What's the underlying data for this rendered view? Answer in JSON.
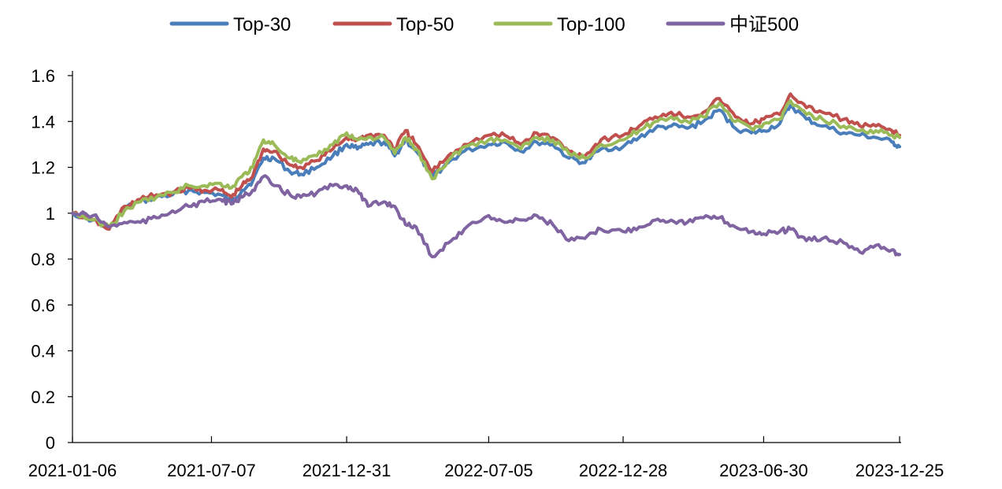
{
  "chart_data": {
    "type": "line",
    "title": "",
    "xlabel": "",
    "ylabel": "",
    "x_tick_labels": [
      "2021-01-06",
      "2021-07-07",
      "2021-12-31",
      "2022-07-05",
      "2022-12-28",
      "2023-06-30",
      "2023-12-25"
    ],
    "y_tick_labels": [
      "0",
      "0.2",
      "0.4",
      "0.6",
      "0.8",
      "1",
      "1.2",
      "1.4",
      "1.6"
    ],
    "ylim": [
      0,
      1.6
    ],
    "grid": false,
    "legend_position": "top",
    "series": [
      {
        "name": "Top-30",
        "color": "#4a7ebb",
        "points": [
          [
            "2021-01-06",
            1.0
          ],
          [
            "2021-02-02",
            0.97
          ],
          [
            "2021-02-23",
            0.93
          ],
          [
            "2021-03-15",
            1.02
          ],
          [
            "2021-04-05",
            1.05
          ],
          [
            "2021-04-26",
            1.07
          ],
          [
            "2021-05-17",
            1.08
          ],
          [
            "2021-06-07",
            1.1
          ],
          [
            "2021-06-28",
            1.09
          ],
          [
            "2021-07-19",
            1.08
          ],
          [
            "2021-08-02",
            1.05
          ],
          [
            "2021-08-16",
            1.1
          ],
          [
            "2021-08-30",
            1.14
          ],
          [
            "2021-09-13",
            1.24
          ],
          [
            "2021-09-27",
            1.24
          ],
          [
            "2021-10-18",
            1.18
          ],
          [
            "2021-11-01",
            1.17
          ],
          [
            "2021-11-22",
            1.2
          ],
          [
            "2021-12-13",
            1.25
          ],
          [
            "2021-12-31",
            1.3
          ],
          [
            "2022-01-14",
            1.28
          ],
          [
            "2022-01-28",
            1.3
          ],
          [
            "2022-02-18",
            1.31
          ],
          [
            "2022-03-04",
            1.25
          ],
          [
            "2022-03-18",
            1.32
          ],
          [
            "2022-04-01",
            1.27
          ],
          [
            "2022-04-22",
            1.16
          ],
          [
            "2022-05-13",
            1.22
          ],
          [
            "2022-06-03",
            1.27
          ],
          [
            "2022-07-05",
            1.3
          ],
          [
            "2022-07-26",
            1.31
          ],
          [
            "2022-08-16",
            1.27
          ],
          [
            "2022-09-06",
            1.31
          ],
          [
            "2022-09-27",
            1.3
          ],
          [
            "2022-10-18",
            1.24
          ],
          [
            "2022-11-08",
            1.22
          ],
          [
            "2022-11-29",
            1.28
          ],
          [
            "2022-12-28",
            1.29
          ],
          [
            "2023-01-18",
            1.33
          ],
          [
            "2023-02-08",
            1.37
          ],
          [
            "2023-03-01",
            1.38
          ],
          [
            "2023-03-22",
            1.37
          ],
          [
            "2023-04-12",
            1.4
          ],
          [
            "2023-05-03",
            1.45
          ],
          [
            "2023-05-24",
            1.37
          ],
          [
            "2023-06-14",
            1.35
          ],
          [
            "2023-06-30",
            1.36
          ],
          [
            "2023-07-21",
            1.39
          ],
          [
            "2023-08-04",
            1.47
          ],
          [
            "2023-08-25",
            1.41
          ],
          [
            "2023-09-15",
            1.38
          ],
          [
            "2023-10-13",
            1.35
          ],
          [
            "2023-11-03",
            1.34
          ],
          [
            "2023-11-24",
            1.33
          ],
          [
            "2023-12-15",
            1.31
          ],
          [
            "2023-12-25",
            1.29
          ]
        ]
      },
      {
        "name": "Top-50",
        "color": "#c0504d",
        "points": [
          [
            "2021-01-06",
            1.0
          ],
          [
            "2021-02-02",
            0.97
          ],
          [
            "2021-02-23",
            0.93
          ],
          [
            "2021-03-15",
            1.03
          ],
          [
            "2021-04-05",
            1.06
          ],
          [
            "2021-04-26",
            1.08
          ],
          [
            "2021-05-17",
            1.09
          ],
          [
            "2021-06-07",
            1.11
          ],
          [
            "2021-06-28",
            1.1
          ],
          [
            "2021-07-19",
            1.1
          ],
          [
            "2021-08-02",
            1.07
          ],
          [
            "2021-08-16",
            1.12
          ],
          [
            "2021-08-30",
            1.16
          ],
          [
            "2021-09-13",
            1.28
          ],
          [
            "2021-09-27",
            1.27
          ],
          [
            "2021-10-18",
            1.21
          ],
          [
            "2021-11-01",
            1.2
          ],
          [
            "2021-11-22",
            1.23
          ],
          [
            "2021-12-13",
            1.28
          ],
          [
            "2021-12-31",
            1.33
          ],
          [
            "2022-01-14",
            1.32
          ],
          [
            "2022-01-28",
            1.34
          ],
          [
            "2022-02-18",
            1.34
          ],
          [
            "2022-03-04",
            1.28
          ],
          [
            "2022-03-18",
            1.36
          ],
          [
            "2022-04-01",
            1.3
          ],
          [
            "2022-04-22",
            1.18
          ],
          [
            "2022-05-13",
            1.25
          ],
          [
            "2022-06-03",
            1.3
          ],
          [
            "2022-07-05",
            1.34
          ],
          [
            "2022-07-26",
            1.34
          ],
          [
            "2022-08-16",
            1.3
          ],
          [
            "2022-09-06",
            1.35
          ],
          [
            "2022-09-27",
            1.33
          ],
          [
            "2022-10-18",
            1.27
          ],
          [
            "2022-11-08",
            1.25
          ],
          [
            "2022-11-29",
            1.32
          ],
          [
            "2022-12-28",
            1.34
          ],
          [
            "2023-01-18",
            1.38
          ],
          [
            "2023-02-08",
            1.42
          ],
          [
            "2023-03-01",
            1.44
          ],
          [
            "2023-03-22",
            1.42
          ],
          [
            "2023-04-12",
            1.44
          ],
          [
            "2023-05-03",
            1.5
          ],
          [
            "2023-05-24",
            1.42
          ],
          [
            "2023-06-14",
            1.39
          ],
          [
            "2023-06-30",
            1.41
          ],
          [
            "2023-07-21",
            1.43
          ],
          [
            "2023-08-04",
            1.52
          ],
          [
            "2023-08-25",
            1.46
          ],
          [
            "2023-09-15",
            1.44
          ],
          [
            "2023-10-13",
            1.41
          ],
          [
            "2023-11-03",
            1.38
          ],
          [
            "2023-11-24",
            1.38
          ],
          [
            "2023-12-15",
            1.36
          ],
          [
            "2023-12-25",
            1.34
          ]
        ]
      },
      {
        "name": "Top-100",
        "color": "#9bbb59",
        "points": [
          [
            "2021-01-06",
            1.0
          ],
          [
            "2021-02-02",
            0.97
          ],
          [
            "2021-02-23",
            0.94
          ],
          [
            "2021-03-15",
            1.01
          ],
          [
            "2021-04-05",
            1.05
          ],
          [
            "2021-04-26",
            1.07
          ],
          [
            "2021-05-17",
            1.09
          ],
          [
            "2021-06-07",
            1.12
          ],
          [
            "2021-06-28",
            1.12
          ],
          [
            "2021-07-19",
            1.13
          ],
          [
            "2021-08-02",
            1.11
          ],
          [
            "2021-08-16",
            1.16
          ],
          [
            "2021-08-30",
            1.2
          ],
          [
            "2021-09-13",
            1.32
          ],
          [
            "2021-09-27",
            1.3
          ],
          [
            "2021-10-18",
            1.24
          ],
          [
            "2021-11-01",
            1.22
          ],
          [
            "2021-11-22",
            1.25
          ],
          [
            "2021-12-13",
            1.3
          ],
          [
            "2021-12-31",
            1.35
          ],
          [
            "2022-01-14",
            1.32
          ],
          [
            "2022-01-28",
            1.33
          ],
          [
            "2022-02-18",
            1.33
          ],
          [
            "2022-03-04",
            1.26
          ],
          [
            "2022-03-18",
            1.33
          ],
          [
            "2022-04-01",
            1.28
          ],
          [
            "2022-04-22",
            1.15
          ],
          [
            "2022-05-13",
            1.23
          ],
          [
            "2022-06-03",
            1.29
          ],
          [
            "2022-07-05",
            1.32
          ],
          [
            "2022-07-26",
            1.32
          ],
          [
            "2022-08-16",
            1.28
          ],
          [
            "2022-09-06",
            1.33
          ],
          [
            "2022-09-27",
            1.32
          ],
          [
            "2022-10-18",
            1.26
          ],
          [
            "2022-11-08",
            1.24
          ],
          [
            "2022-11-29",
            1.3
          ],
          [
            "2022-12-28",
            1.32
          ],
          [
            "2023-01-18",
            1.36
          ],
          [
            "2023-02-08",
            1.4
          ],
          [
            "2023-03-01",
            1.42
          ],
          [
            "2023-03-22",
            1.4
          ],
          [
            "2023-04-12",
            1.42
          ],
          [
            "2023-05-03",
            1.48
          ],
          [
            "2023-05-24",
            1.4
          ],
          [
            "2023-06-14",
            1.37
          ],
          [
            "2023-06-30",
            1.39
          ],
          [
            "2023-07-21",
            1.41
          ],
          [
            "2023-08-04",
            1.49
          ],
          [
            "2023-08-25",
            1.43
          ],
          [
            "2023-09-15",
            1.41
          ],
          [
            "2023-10-13",
            1.38
          ],
          [
            "2023-11-03",
            1.36
          ],
          [
            "2023-11-24",
            1.36
          ],
          [
            "2023-12-15",
            1.34
          ],
          [
            "2023-12-25",
            1.33
          ]
        ]
      },
      {
        "name": "中证500",
        "color": "#8064a2",
        "points": [
          [
            "2021-01-06",
            1.0
          ],
          [
            "2021-02-02",
            0.99
          ],
          [
            "2021-02-23",
            0.94
          ],
          [
            "2021-03-15",
            0.96
          ],
          [
            "2021-04-05",
            0.96
          ],
          [
            "2021-04-26",
            0.98
          ],
          [
            "2021-05-17",
            1.01
          ],
          [
            "2021-06-07",
            1.03
          ],
          [
            "2021-06-28",
            1.05
          ],
          [
            "2021-07-19",
            1.06
          ],
          [
            "2021-08-02",
            1.04
          ],
          [
            "2021-08-16",
            1.07
          ],
          [
            "2021-08-30",
            1.1
          ],
          [
            "2021-09-13",
            1.16
          ],
          [
            "2021-09-27",
            1.12
          ],
          [
            "2021-10-18",
            1.08
          ],
          [
            "2021-11-01",
            1.07
          ],
          [
            "2021-11-22",
            1.09
          ],
          [
            "2021-12-13",
            1.12
          ],
          [
            "2021-12-31",
            1.12
          ],
          [
            "2022-01-14",
            1.1
          ],
          [
            "2022-01-28",
            1.03
          ],
          [
            "2022-02-18",
            1.05
          ],
          [
            "2022-03-04",
            1.03
          ],
          [
            "2022-03-18",
            0.95
          ],
          [
            "2022-04-01",
            0.94
          ],
          [
            "2022-04-22",
            0.81
          ],
          [
            "2022-05-13",
            0.87
          ],
          [
            "2022-06-03",
            0.93
          ],
          [
            "2022-07-05",
            0.99
          ],
          [
            "2022-07-26",
            0.96
          ],
          [
            "2022-08-16",
            0.97
          ],
          [
            "2022-09-06",
            0.99
          ],
          [
            "2022-09-27",
            0.95
          ],
          [
            "2022-10-18",
            0.88
          ],
          [
            "2022-11-08",
            0.89
          ],
          [
            "2022-11-29",
            0.93
          ],
          [
            "2022-12-28",
            0.92
          ],
          [
            "2023-01-18",
            0.94
          ],
          [
            "2023-02-08",
            0.97
          ],
          [
            "2023-03-01",
            0.97
          ],
          [
            "2023-03-22",
            0.96
          ],
          [
            "2023-04-12",
            0.98
          ],
          [
            "2023-05-03",
            0.98
          ],
          [
            "2023-05-24",
            0.94
          ],
          [
            "2023-06-14",
            0.92
          ],
          [
            "2023-06-30",
            0.91
          ],
          [
            "2023-07-21",
            0.92
          ],
          [
            "2023-08-04",
            0.93
          ],
          [
            "2023-08-25",
            0.88
          ],
          [
            "2023-09-15",
            0.89
          ],
          [
            "2023-10-13",
            0.87
          ],
          [
            "2023-11-03",
            0.83
          ],
          [
            "2023-11-24",
            0.86
          ],
          [
            "2023-12-15",
            0.84
          ],
          [
            "2023-12-25",
            0.82
          ]
        ]
      }
    ]
  }
}
